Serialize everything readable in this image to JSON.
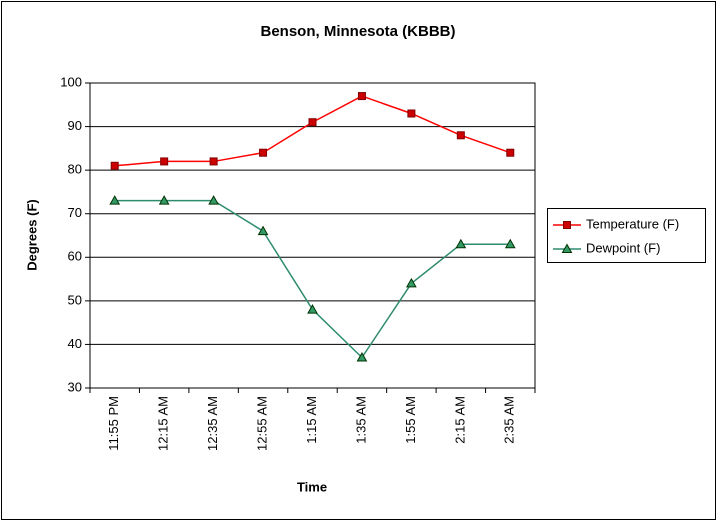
{
  "chart_data": {
    "type": "line",
    "title": "Benson, Minnesota (KBBB)",
    "x_label": "Time",
    "y_label": "Degrees (F)",
    "categories": [
      "11:55 PM",
      "12:15 AM",
      "12:35 AM",
      "12:55 AM",
      "1:15 AM",
      "1:35 AM",
      "1:55 AM",
      "2:15 AM",
      "2:35 AM"
    ],
    "series": [
      {
        "name": "Temperature (F)",
        "color": "#ff0000",
        "marker": "square",
        "marker_color": "#cc0000",
        "values": [
          81,
          82,
          82,
          84,
          91,
          97,
          93,
          88,
          84
        ]
      },
      {
        "name": "Dewpoint (F)",
        "color": "#2e8b6e",
        "marker": "triangle",
        "marker_color": "#339966",
        "values": [
          73,
          73,
          73,
          66,
          48,
          37,
          54,
          63,
          63
        ]
      }
    ],
    "ylim": [
      30,
      100
    ],
    "yticks": [
      30,
      40,
      50,
      60,
      70,
      80,
      90,
      100
    ],
    "grid": true,
    "legend": "right"
  }
}
